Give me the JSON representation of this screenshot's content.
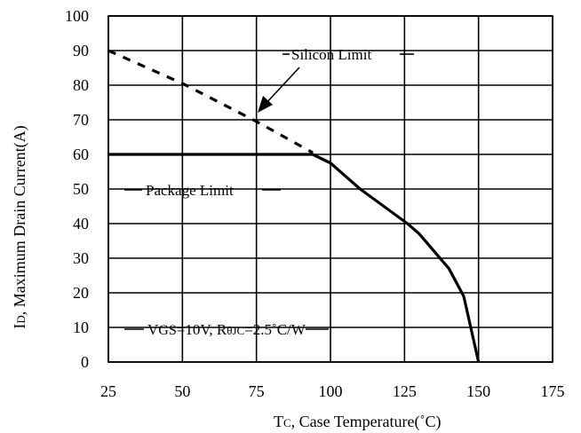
{
  "chart_data": {
    "type": "line",
    "title": "",
    "xlabel": "Tc, Case Temperature(˚C)",
    "ylabel": "ID, Maximum Drain Current(A)",
    "xlim": [
      25,
      175
    ],
    "ylim": [
      0,
      100
    ],
    "x_ticks": [
      "25",
      "50",
      "75",
      "100",
      "125",
      "150",
      "175"
    ],
    "y_ticks": [
      "0",
      "10",
      "20",
      "30",
      "40",
      "50",
      "60",
      "70",
      "80",
      "90",
      "100"
    ],
    "grid": true,
    "series": [
      {
        "name": "Silicon Limit",
        "style": "dashed",
        "x": [
          25,
          50,
          75,
          94
        ],
        "y": [
          90,
          80.5,
          69.5,
          60.5
        ]
      },
      {
        "name": "Package Limit",
        "style": "solid",
        "x": [
          25,
          94,
          100,
          110,
          126,
          130,
          140,
          145,
          150
        ],
        "y": [
          60,
          60,
          57.5,
          50,
          40,
          37,
          27,
          19,
          0
        ]
      }
    ],
    "annotations": {
      "silicon_limit": "Silicon Limit",
      "package_limit": "Package Limit",
      "condition": "VGS=10V, RθJC=2.5˚C/W"
    },
    "label_parts": {
      "ylabel_sym": "I",
      "ylabel_sub": "D",
      "ylabel_rest": ", Maximum Drain Current(A)",
      "xlabel_sym": "T",
      "xlabel_sub": "C",
      "xlabel_rest": ", Case Temperature(˚C)",
      "cond_v": "V",
      "cond_v_sub": "GS",
      "cond_mid": "=10V, R",
      "cond_r_sub": "θJC",
      "cond_end": "=2.5˚C/W"
    }
  }
}
